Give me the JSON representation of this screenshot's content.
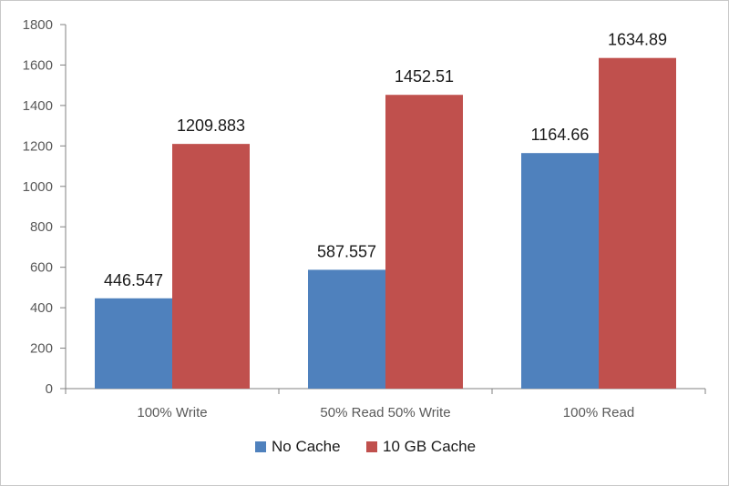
{
  "chart_data": {
    "type": "bar",
    "categories": [
      "100% Write",
      "50% Read 50% Write",
      "100% Read"
    ],
    "series": [
      {
        "name": "No Cache",
        "values": [
          446.547,
          587.557,
          1164.66
        ],
        "labels": [
          "446.547",
          "587.557",
          "1164.66"
        ],
        "color": "#4f81bd"
      },
      {
        "name": "10 GB Cache",
        "values": [
          1209.883,
          1452.51,
          1634.89
        ],
        "labels": [
          "1209.883",
          "1452.51",
          "1634.89"
        ],
        "color": "#c0504d"
      }
    ],
    "ylim": [
      0,
      1800
    ],
    "yticks": [
      0,
      200,
      400,
      600,
      800,
      1000,
      1200,
      1400,
      1600,
      1800
    ],
    "grid": false,
    "legend_position": "bottom"
  }
}
